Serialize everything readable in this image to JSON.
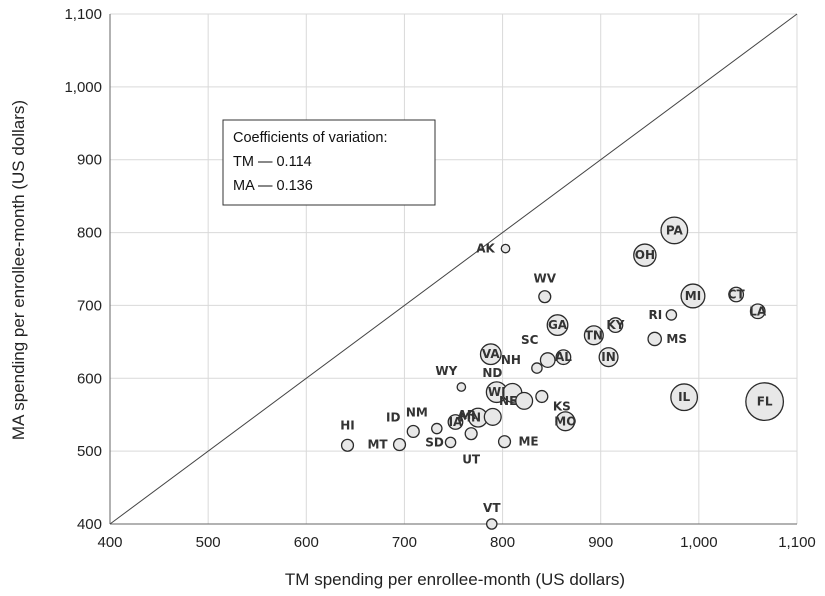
{
  "chart_data": {
    "type": "scatter",
    "title": "",
    "xlabel": "TM spending per enrollee-month (US dollars)",
    "ylabel": "MA spending per enrollee-month (US dollars)",
    "xlim": [
      400,
      1100
    ],
    "ylim": [
      400,
      1100
    ],
    "x_ticks": [
      "400",
      "500",
      "600",
      "700",
      "800",
      "900",
      "1,000",
      "1,100"
    ],
    "y_ticks": [
      "400",
      "500",
      "600",
      "700",
      "800",
      "900",
      "1,000",
      "1,100"
    ],
    "grid": true,
    "reference_line": "y = x",
    "annotation": {
      "heading": "Coefficients of variation:",
      "line1": "TM — 0.114",
      "line2": "MA — 0.136"
    },
    "points": [
      {
        "label": "AK",
        "x": 803,
        "y": 778,
        "size": 1
      },
      {
        "label": "PA",
        "x": 975,
        "y": 803,
        "size": 10
      },
      {
        "label": "OH",
        "x": 945,
        "y": 769,
        "size": 7
      },
      {
        "label": "WV",
        "x": 843,
        "y": 712,
        "size": 2
      },
      {
        "label": "CT",
        "x": 1038,
        "y": 715,
        "size": 3
      },
      {
        "label": "MI",
        "x": 994,
        "y": 713,
        "size": 8
      },
      {
        "label": "LA",
        "x": 1060,
        "y": 692,
        "size": 3
      },
      {
        "label": "RI",
        "x": 972,
        "y": 687,
        "size": 1.5
      },
      {
        "label": "KY",
        "x": 915,
        "y": 673,
        "size": 3
      },
      {
        "label": "GA",
        "x": 856,
        "y": 673,
        "size": 6
      },
      {
        "label": "TN",
        "x": 893,
        "y": 659,
        "size": 5
      },
      {
        "label": "MS",
        "x": 955,
        "y": 654,
        "size": 2.5
      },
      {
        "label": "SC",
        "x": 846,
        "y": 625,
        "size": 3
      },
      {
        "label": "AL",
        "x": 862,
        "y": 629,
        "size": 3
      },
      {
        "label": "IN",
        "x": 908,
        "y": 629,
        "size": 5
      },
      {
        "label": "VA",
        "x": 788,
        "y": 633,
        "size": 6
      },
      {
        "label": "NH",
        "x": 835,
        "y": 614,
        "size": 1.5
      },
      {
        "label": "WY",
        "x": 758,
        "y": 588,
        "size": 1
      },
      {
        "label": "KS",
        "x": 840,
        "y": 575,
        "size": 2
      },
      {
        "label": "IL",
        "x": 985,
        "y": 574,
        "size": 10
      },
      {
        "label": "FL",
        "x": 1067,
        "y": 568,
        "size": 20
      },
      {
        "label": "WI",
        "x": 794,
        "y": 581,
        "size": 6
      },
      {
        "label": "ND",
        "x": 810,
        "y": 580,
        "size": 5
      },
      {
        "label": "NE",
        "x": 822,
        "y": 569,
        "size": 4
      },
      {
        "label": "MN",
        "x": 775,
        "y": 546,
        "size": 5
      },
      {
        "label": "AR",
        "x": 790,
        "y": 547,
        "size": 4
      },
      {
        "label": "MO",
        "x": 864,
        "y": 541,
        "size": 5
      },
      {
        "label": "IA",
        "x": 752,
        "y": 540,
        "size": 3
      },
      {
        "label": "NM",
        "x": 733,
        "y": 531,
        "size": 1.5
      },
      {
        "label": "ID",
        "x": 709,
        "y": 527,
        "size": 2
      },
      {
        "label": "SD",
        "x": 747,
        "y": 512,
        "size": 1.5
      },
      {
        "label": "UT",
        "x": 768,
        "y": 524,
        "size": 2
      },
      {
        "label": "ME",
        "x": 802,
        "y": 513,
        "size": 2
      },
      {
        "label": "HI",
        "x": 642,
        "y": 508,
        "size": 2
      },
      {
        "label": "MT",
        "x": 695,
        "y": 509,
        "size": 2
      },
      {
        "label": "VT",
        "x": 789,
        "y": 400,
        "size": 1.5
      }
    ]
  }
}
